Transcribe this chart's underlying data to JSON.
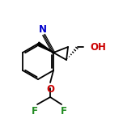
{
  "bg_color": "#ffffff",
  "bond_color": "#000000",
  "atom_colors": {
    "N": "#0000cd",
    "O": "#cc0000",
    "F": "#228b22",
    "C": "#000000"
  },
  "font_size_label": 8.5,
  "line_width": 1.3,
  "figsize": [
    1.52,
    1.52
  ],
  "dpi": 100
}
